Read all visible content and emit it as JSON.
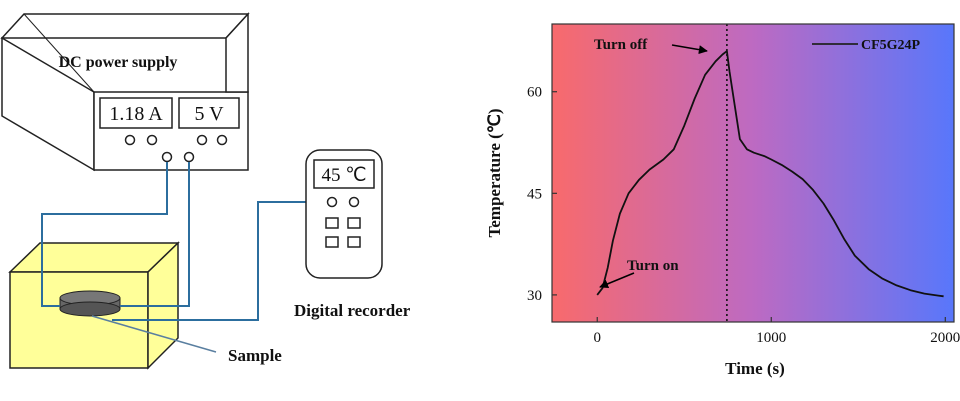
{
  "setup": {
    "power_supply_label": "DC power supply",
    "current_display": "1.18 A",
    "voltage_display": "5 V",
    "recorder_display": "45 ℃",
    "recorder_label": "Digital recorder",
    "sample_label": "Sample",
    "colors": {
      "box": "#ffff99",
      "sample": "#666666",
      "wire": "#2c6e9e"
    }
  },
  "chart_data": {
    "type": "line",
    "xlabel": "Time (s)",
    "ylabel": "Temperature (℃)",
    "xlim": [
      -260,
      2050
    ],
    "ylim": [
      26,
      70
    ],
    "xticks": [
      0,
      1000,
      2000
    ],
    "yticks": [
      30,
      45,
      60
    ],
    "grid": false,
    "legend": {
      "position": "top-right",
      "entries": [
        "CF5G24P"
      ]
    },
    "background_gradient": [
      "#f86a6c",
      "#bd6ac2",
      "#5877fb"
    ],
    "series": [
      {
        "name": "CF5G24P",
        "x": [
          0,
          30,
          60,
          90,
          130,
          180,
          240,
          300,
          380,
          440,
          500,
          560,
          620,
          680,
          720,
          745,
          760,
          790,
          820,
          860,
          900,
          960,
          1000,
          1060,
          1120,
          1180,
          1240,
          1300,
          1360,
          1420,
          1480,
          1560,
          1640,
          1720,
          1800,
          1880,
          1960,
          1990
        ],
        "y": [
          30,
          31,
          34,
          38,
          42,
          45,
          47,
          48.5,
          50,
          51.5,
          55,
          59,
          62.5,
          64.5,
          65.5,
          66,
          63,
          58,
          53,
          51.5,
          51,
          50.5,
          50,
          49.2,
          48.2,
          47.1,
          45.5,
          43.5,
          41,
          38.2,
          35.8,
          33.8,
          32.4,
          31.4,
          30.7,
          30.2,
          29.9,
          29.8
        ]
      }
    ],
    "vline": {
      "x": 745,
      "style": "dotted"
    },
    "annotations": [
      {
        "text": "Turn off",
        "x": 745,
        "y": 66
      },
      {
        "text": "Turn on",
        "x": 0,
        "y": 30
      }
    ]
  }
}
